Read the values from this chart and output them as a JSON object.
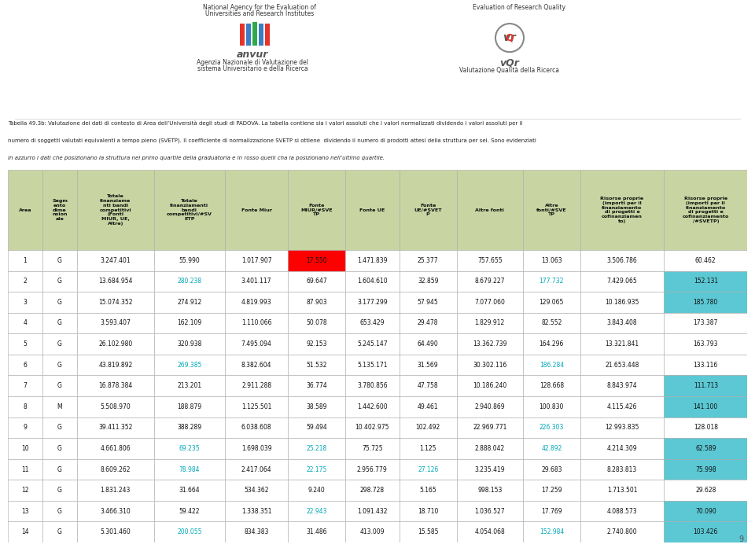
{
  "header_bg": "#c8d5a2",
  "row_bg_white": "#ffffff",
  "highlight_red": "#ff0000",
  "cyan_bg_color": "#5bc8d4",
  "cyan_text_color": "#00a8b8",
  "grid_color": "#aaaaaa",
  "col_headers": [
    "Area",
    "Segm\nento\ndime\nnsion\nale",
    "Totale\nfinanziame\nnti bandi\ncompetitivi\n(Fonti\nMIUR, UE,\nAltre)",
    "Totale\nfinanziamenti\nbandi\ncompetitivi/#SV\nETP",
    "Fonte Miur",
    "Fonte\nMIUR/#SVE\nTP",
    "Fonte UE",
    "Fonte\nUE/#SVET\nP",
    "Altre fonti",
    "Altre\nfonti/#SVE\nTP",
    "Risorse proprie\n(importi per il\nfinanziamento\ndi progetti e\ncofinanziamen\nto)",
    "Risorse proprie\n(importi per il\nfinanziamento\ndi progetti e\ncofinanziamento\n/#SVETP)"
  ],
  "rows": [
    {
      "num": "1",
      "seg": "G",
      "tot_fin": "3.247.401",
      "tot_fin_norm": "55.990",
      "miur": "1.017.907",
      "miur_norm": "17.550",
      "ue": "1.471.839",
      "ue_norm": "25.377",
      "altre": "757.655",
      "altre_norm": "13.063",
      "risorse": "3.506.786",
      "risorse_norm": "60.462",
      "highlights": {
        "5": "red"
      }
    },
    {
      "num": "2",
      "seg": "G",
      "tot_fin": "13.684.954",
      "tot_fin_norm": "280.238",
      "miur": "3.401.117",
      "miur_norm": "69.647",
      "ue": "1.604.610",
      "ue_norm": "32.859",
      "altre": "8.679.227",
      "altre_norm": "177.732",
      "risorse": "7.429.065",
      "risorse_norm": "152.131",
      "highlights": {
        "3": "cyan_text",
        "9": "cyan_text",
        "11": "cyan_bg"
      }
    },
    {
      "num": "3",
      "seg": "G",
      "tot_fin": "15.074.352",
      "tot_fin_norm": "274.912",
      "miur": "4.819.993",
      "miur_norm": "87.903",
      "ue": "3.177.299",
      "ue_norm": "57.945",
      "altre": "7.077.060",
      "altre_norm": "129.065",
      "risorse": "10.186.935",
      "risorse_norm": "185.780",
      "highlights": {
        "11": "cyan_bg"
      }
    },
    {
      "num": "4",
      "seg": "G",
      "tot_fin": "3.593.407",
      "tot_fin_norm": "162.109",
      "miur": "1.110.066",
      "miur_norm": "50.078",
      "ue": "653.429",
      "ue_norm": "29.478",
      "altre": "1.829.912",
      "altre_norm": "82.552",
      "risorse": "3.843.408",
      "risorse_norm": "173.387",
      "highlights": {}
    },
    {
      "num": "5",
      "seg": "G",
      "tot_fin": "26.102.980",
      "tot_fin_norm": "320.938",
      "miur": "7.495.094",
      "miur_norm": "92.153",
      "ue": "5.245.147",
      "ue_norm": "64.490",
      "altre": "13.362.739",
      "altre_norm": "164.296",
      "risorse": "13.321.841",
      "risorse_norm": "163.793",
      "highlights": {}
    },
    {
      "num": "6",
      "seg": "G",
      "tot_fin": "43.819.892",
      "tot_fin_norm": "269.385",
      "miur": "8.382.604",
      "miur_norm": "51.532",
      "ue": "5.135.171",
      "ue_norm": "31.569",
      "altre": "30.302.116",
      "altre_norm": "186.284",
      "risorse": "21.653.448",
      "risorse_norm": "133.116",
      "highlights": {
        "3": "cyan_text",
        "9": "cyan_text"
      }
    },
    {
      "num": "7",
      "seg": "G",
      "tot_fin": "16.878.384",
      "tot_fin_norm": "213.201",
      "miur": "2.911.288",
      "miur_norm": "36.774",
      "ue": "3.780.856",
      "ue_norm": "47.758",
      "altre": "10.186.240",
      "altre_norm": "128.668",
      "risorse": "8.843.974",
      "risorse_norm": "111.713",
      "highlights": {
        "11": "cyan_bg"
      }
    },
    {
      "num": "8",
      "seg": "M",
      "tot_fin": "5.508.970",
      "tot_fin_norm": "188.879",
      "miur": "1.125.501",
      "miur_norm": "38.589",
      "ue": "1.442.600",
      "ue_norm": "49.461",
      "altre": "2.940.869",
      "altre_norm": "100.830",
      "risorse": "4.115.426",
      "risorse_norm": "141.100",
      "highlights": {
        "11": "cyan_bg"
      }
    },
    {
      "num": "9",
      "seg": "G",
      "tot_fin": "39.411.352",
      "tot_fin_norm": "388.289",
      "miur": "6.038.608",
      "miur_norm": "59.494",
      "ue": "10.402.975",
      "ue_norm": "102.492",
      "altre": "22.969.771",
      "altre_norm": "226.303",
      "risorse": "12.993.835",
      "risorse_norm": "128.018",
      "highlights": {
        "9": "cyan_text"
      }
    },
    {
      "num": "10",
      "seg": "G",
      "tot_fin": "4.661.806",
      "tot_fin_norm": "69.235",
      "miur": "1.698.039",
      "miur_norm": "25.218",
      "ue": "75.725",
      "ue_norm": "1.125",
      "altre": "2.888.042",
      "altre_norm": "42.892",
      "risorse": "4.214.309",
      "risorse_norm": "62.589",
      "highlights": {
        "3": "cyan_text",
        "5": "cyan_text",
        "9": "cyan_text",
        "11": "cyan_bg"
      }
    },
    {
      "num": "11",
      "seg": "G",
      "tot_fin": "8.609.262",
      "tot_fin_norm": "78.984",
      "miur": "2.417.064",
      "miur_norm": "22.175",
      "ue": "2.956.779",
      "ue_norm": "27.126",
      "altre": "3.235.419",
      "altre_norm": "29.683",
      "risorse": "8.283.813",
      "risorse_norm": "75.998",
      "highlights": {
        "3": "cyan_text",
        "5": "cyan_text",
        "7": "cyan_text",
        "11": "cyan_bg"
      }
    },
    {
      "num": "12",
      "seg": "G",
      "tot_fin": "1.831.243",
      "tot_fin_norm": "31.664",
      "miur": "534.362",
      "miur_norm": "9.240",
      "ue": "298.728",
      "ue_norm": "5.165",
      "altre": "998.153",
      "altre_norm": "17.259",
      "risorse": "1.713.501",
      "risorse_norm": "29.628",
      "highlights": {}
    },
    {
      "num": "13",
      "seg": "G",
      "tot_fin": "3.466.310",
      "tot_fin_norm": "59.422",
      "miur": "1.338.351",
      "miur_norm": "22.943",
      "ue": "1.091.432",
      "ue_norm": "18.710",
      "altre": "1.036.527",
      "altre_norm": "17.769",
      "risorse": "4.088.573",
      "risorse_norm": "70.090",
      "highlights": {
        "5": "cyan_text",
        "11": "cyan_bg"
      }
    },
    {
      "num": "14",
      "seg": "G",
      "tot_fin": "5.301.460",
      "tot_fin_norm": "200.055",
      "miur": "834.383",
      "miur_norm": "31.486",
      "ue": "413.009",
      "ue_norm": "15.585",
      "altre": "4.054.068",
      "altre_norm": "152.984",
      "risorse": "2.740.800",
      "risorse_norm": "103.426",
      "highlights": {
        "3": "cyan_text",
        "9": "cyan_text",
        "11": "cyan_bg"
      }
    }
  ],
  "anvur_line1": "National Agency for the Evaluation of",
  "anvur_line2": "Universities and Research Institutes",
  "anvur_name": "anvur",
  "anvur_line3": "Agenzia Nazionale di Valutazione del",
  "anvur_line4": "sistema Universitario e della Ricerca",
  "vqr_line1": "Evaluation of Research Quality",
  "vqr_name": "vQr",
  "vqr_line2": "Valutazione Qualità della Ricerca",
  "title_line1": "Tabella 49.3b: Valutazione dei dati di contesto di Area dell’Università degli studi di PADOVA. La tabella contiene sia i valori assoluti che i valori normalizzati dividendo i valori assoluti per il",
  "title_line2": "numero di soggetti valutati equivalenti a tempo pieno (SVETP). Il coefficiente di normalizzazione SVETP si ottiene  dividendo il numero di prodotti attesi della struttura per sei. Sono evidenziati",
  "title_line3": "in azzurro i dati che posizionano la struttura nel primo quartile della graduatoria e in rosso quelli cha la posizionano nell’ultimo quartile.",
  "page_num": "9"
}
